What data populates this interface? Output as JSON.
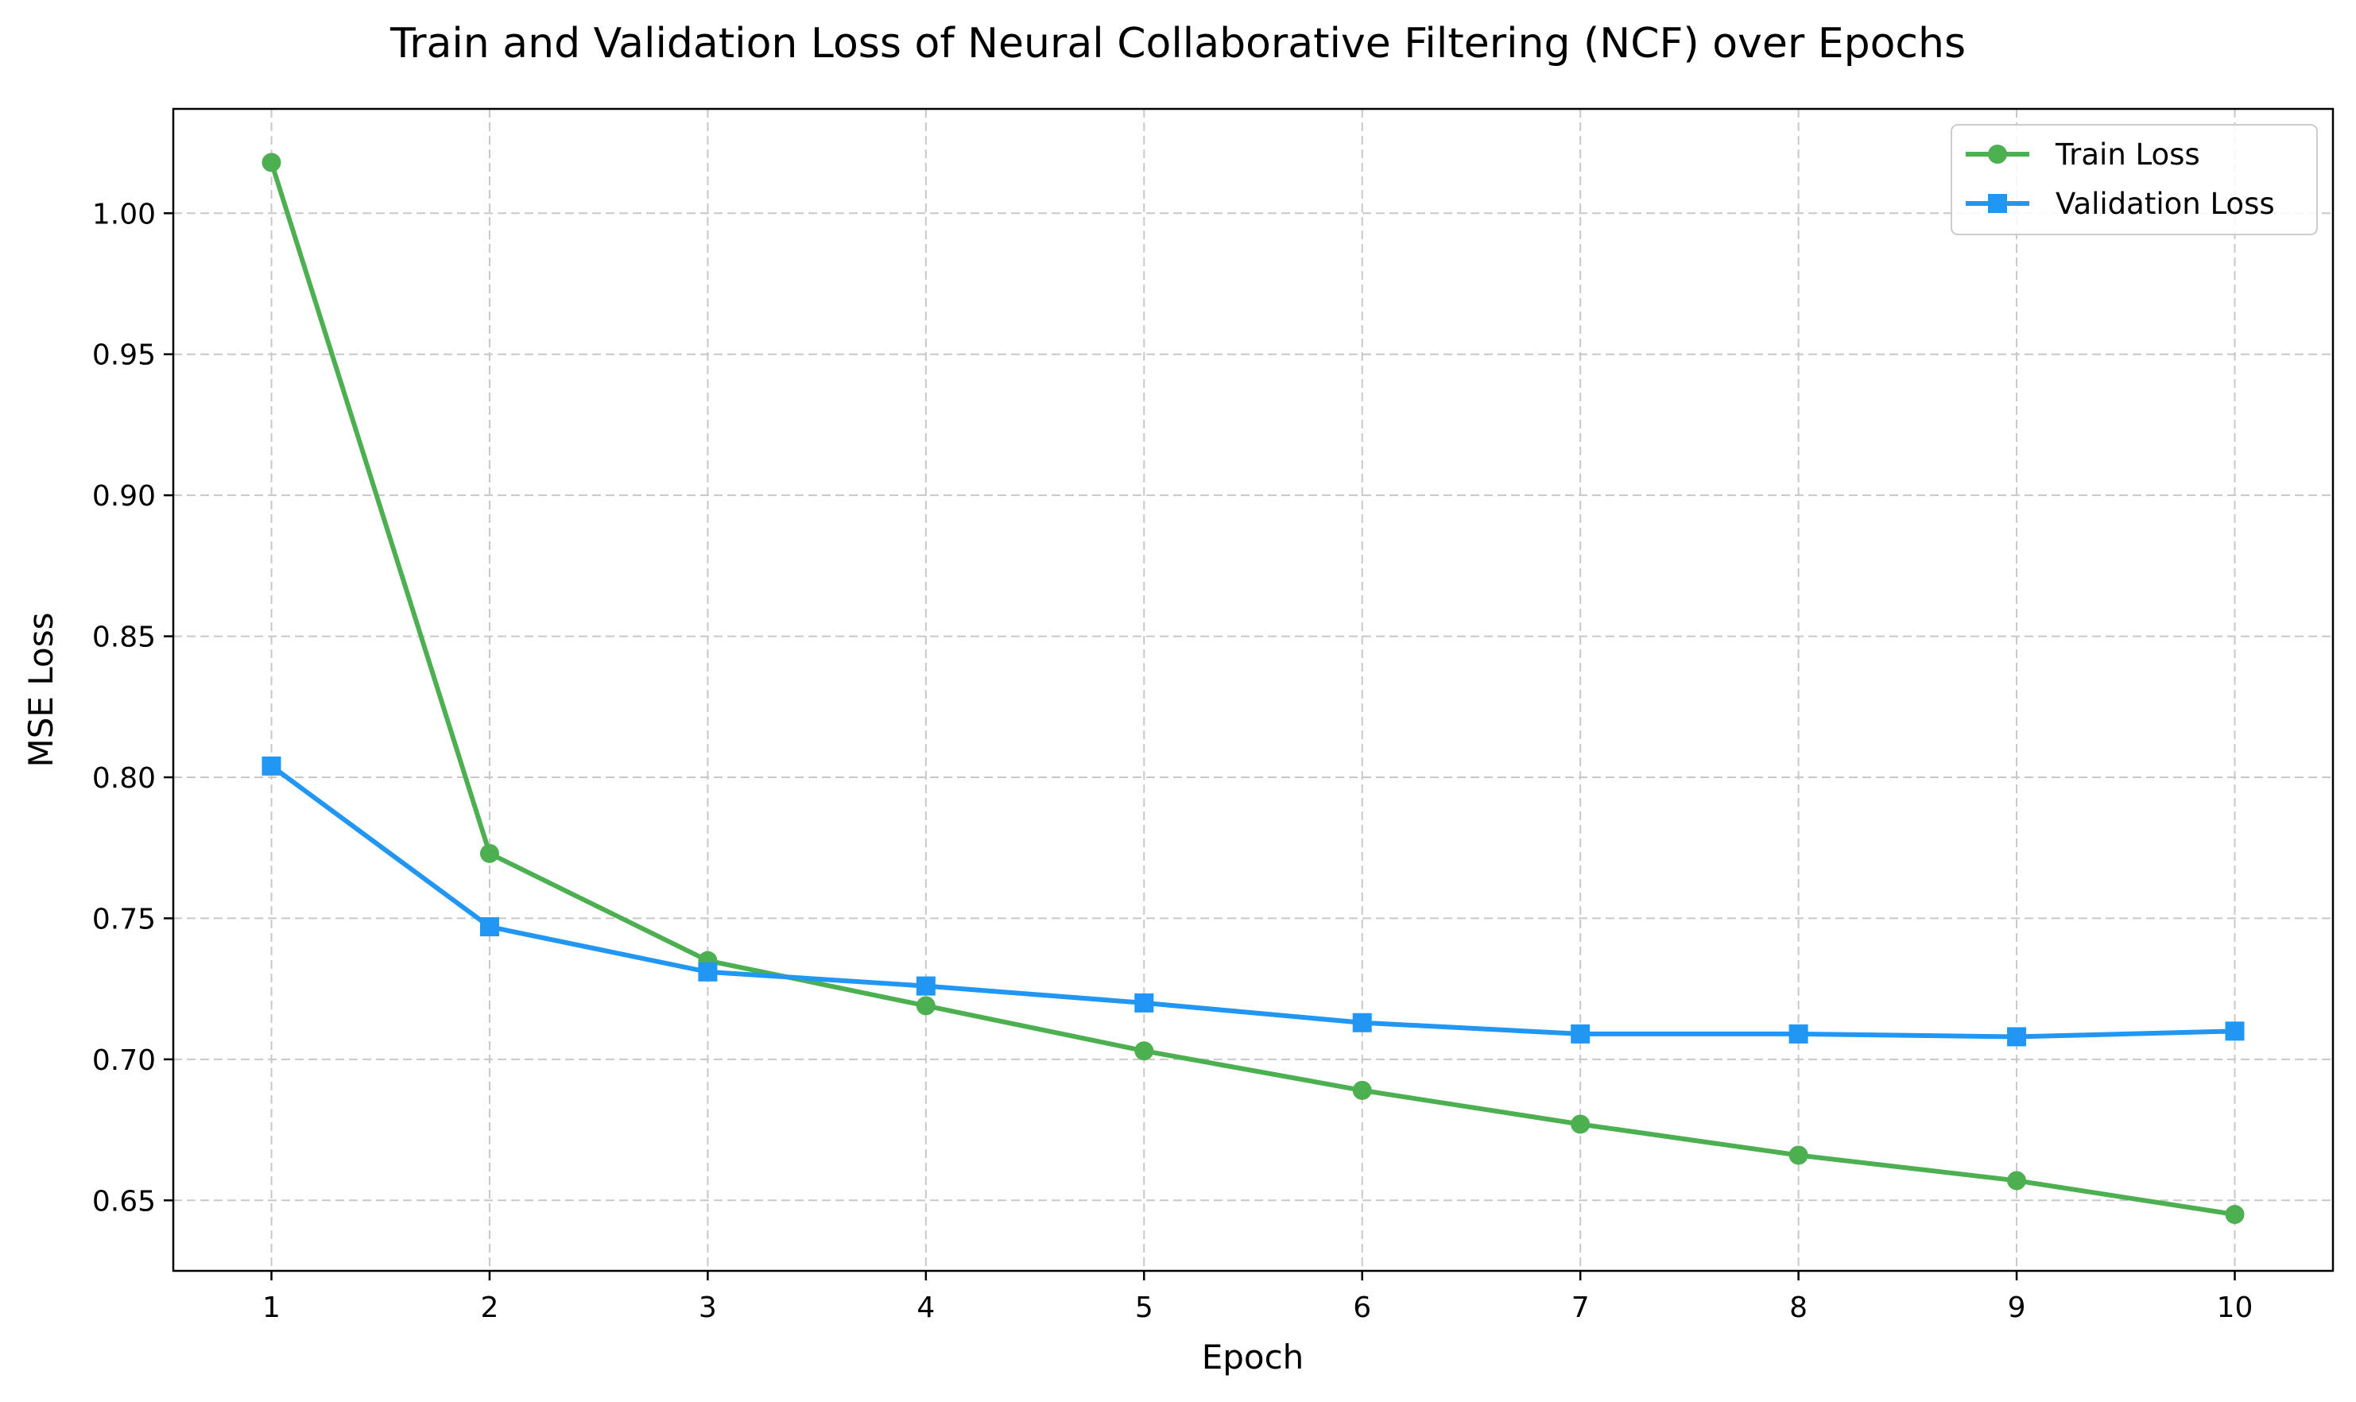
{
  "chart_data": {
    "type": "line",
    "title": "Train and Validation Loss of Neural Collaborative Filtering (NCF) over Epochs",
    "xlabel": "Epoch",
    "ylabel": "MSE Loss",
    "x": [
      1,
      2,
      3,
      4,
      5,
      6,
      7,
      8,
      9,
      10
    ],
    "xticks": [
      "1",
      "2",
      "3",
      "4",
      "5",
      "6",
      "7",
      "8",
      "9",
      "10"
    ],
    "yticks": [
      "0.65",
      "0.70",
      "0.75",
      "0.80",
      "0.85",
      "0.90",
      "0.95",
      "1.00"
    ],
    "xlim": [
      0.55,
      10.45
    ],
    "ylim": [
      0.625,
      1.037
    ],
    "grid": true,
    "legend_position": "top-right",
    "series": [
      {
        "name": "Train Loss",
        "color": "#4caf50",
        "marker": "circle",
        "values": [
          1.018,
          0.773,
          0.735,
          0.719,
          0.703,
          0.689,
          0.677,
          0.666,
          0.657,
          0.645
        ]
      },
      {
        "name": "Validation Loss",
        "color": "#2196f3",
        "marker": "square",
        "values": [
          0.804,
          0.747,
          0.731,
          0.726,
          0.72,
          0.713,
          0.709,
          0.709,
          0.708,
          0.71
        ]
      }
    ]
  }
}
